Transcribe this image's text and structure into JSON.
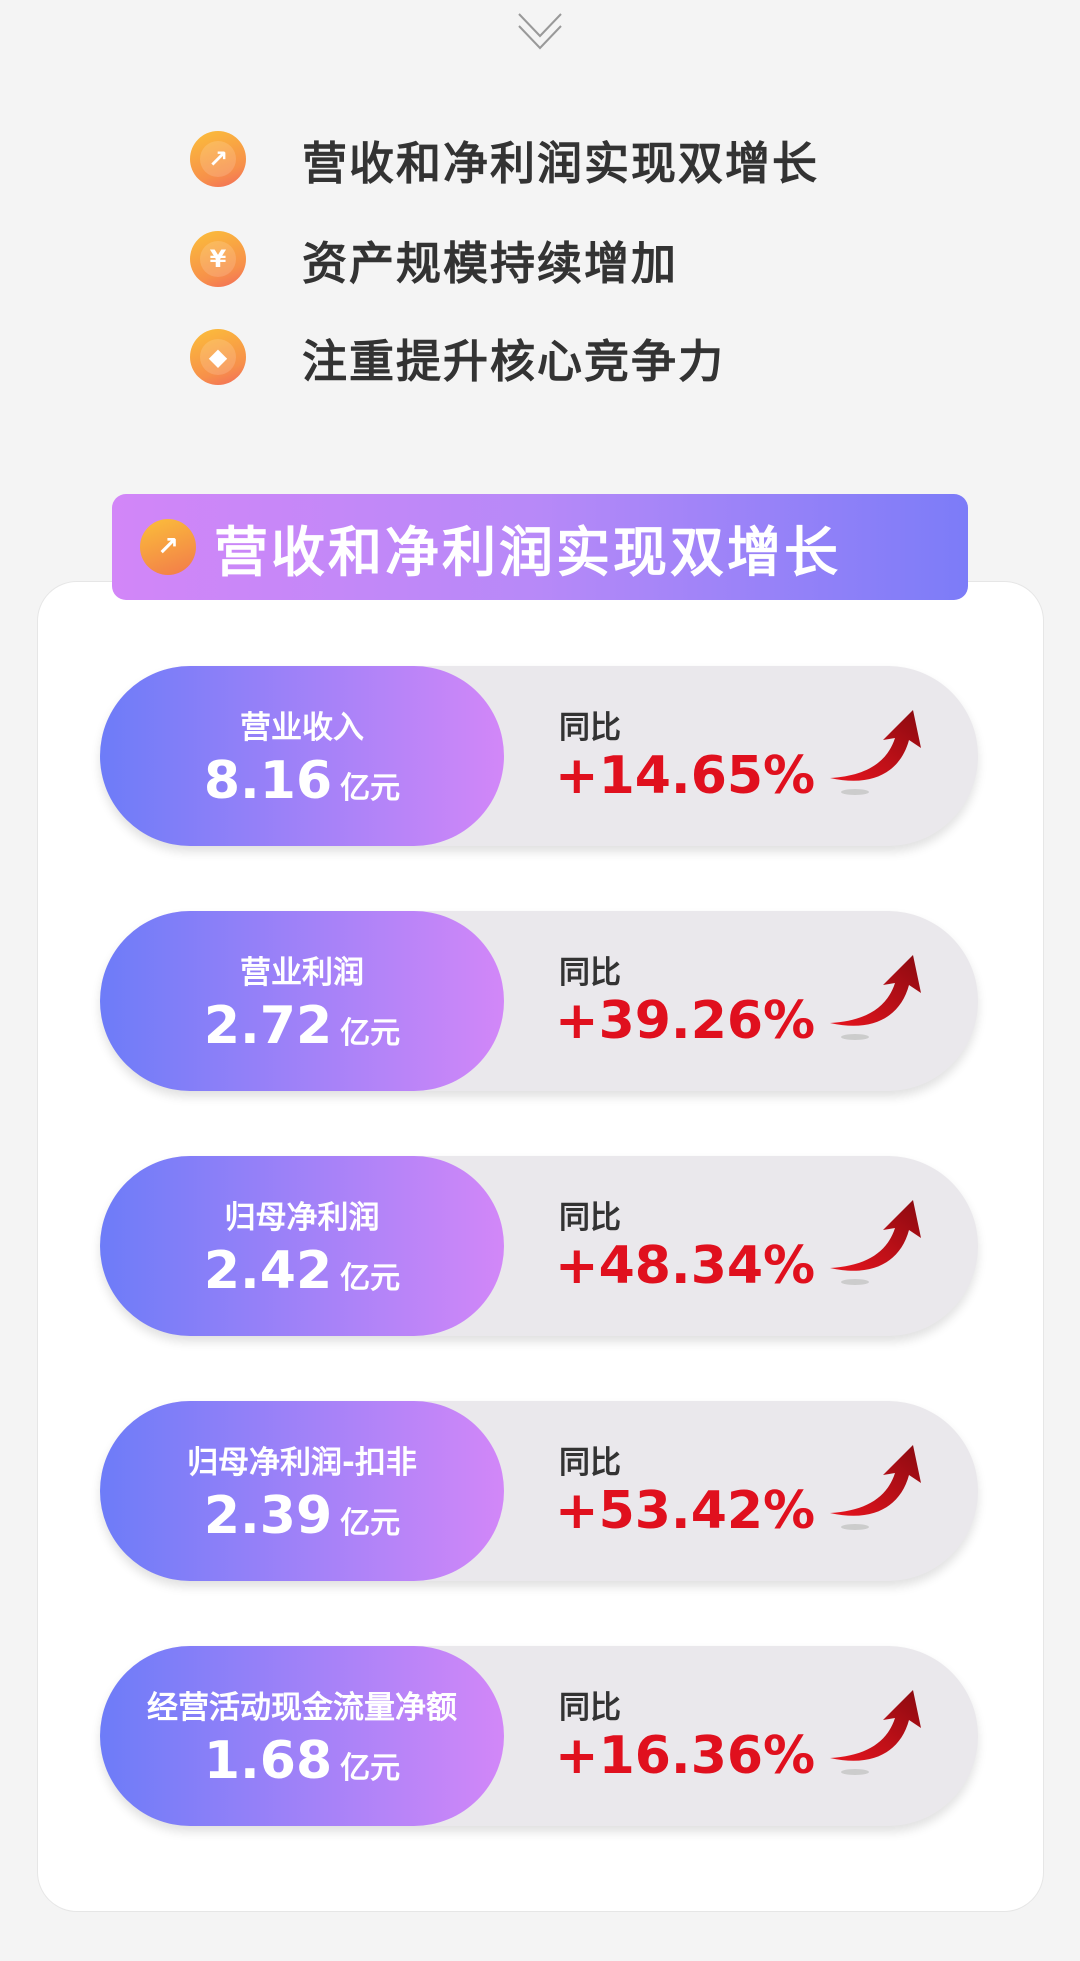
{
  "highlights": [
    {
      "icon": "growth-chart-icon",
      "text": "营收和净利润实现双增长"
    },
    {
      "icon": "yen-coin-icon",
      "text": "资产规模持续增加"
    },
    {
      "icon": "diamond-icon",
      "text": "注重提升核心竞争力"
    }
  ],
  "section": {
    "icon": "growth-chart-icon",
    "title": "营收和净利润实现双增长"
  },
  "metrics": [
    {
      "label": "营业收入",
      "value": "8.16",
      "unit": "亿元",
      "yoy_label": "同比",
      "yoy": "+14.65%"
    },
    {
      "label": "营业利润",
      "value": "2.72",
      "unit": "亿元",
      "yoy_label": "同比",
      "yoy": "+39.26%"
    },
    {
      "label": "归母净利润",
      "value": "2.42",
      "unit": "亿元",
      "yoy_label": "同比",
      "yoy": "+48.34%"
    },
    {
      "label": "归母净利润-扣非",
      "value": "2.39",
      "unit": "亿元",
      "yoy_label": "同比",
      "yoy": "+53.42%"
    },
    {
      "label": "经营活动现金流量净额",
      "value": "1.68",
      "unit": "亿元",
      "yoy_label": "同比",
      "yoy": "+16.36%"
    }
  ],
  "colors": {
    "accent_red": "#e0101e",
    "gradient_start": "#6d7cf8",
    "gradient_end": "#d287f8"
  }
}
